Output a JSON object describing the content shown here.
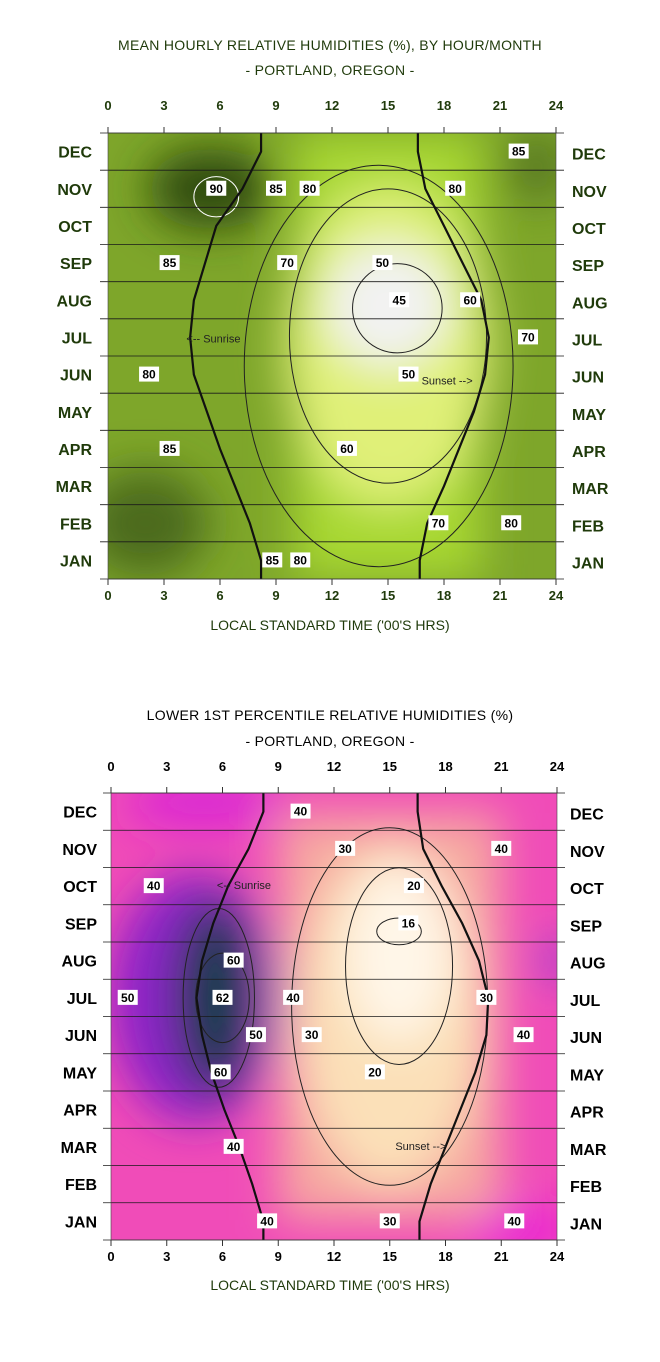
{
  "chart_data": [
    {
      "type": "heatmap",
      "title": "MEAN HOURLY RELATIVE HUMIDITIES (%), BY HOUR/MONTH",
      "subtitle": "- PORTLAND, OREGON -",
      "xlabel": "LOCAL STANDARD TIME ('00'S HRS)",
      "x_ticks": [
        "0",
        "3",
        "6",
        "9",
        "12",
        "15",
        "18",
        "21",
        "24"
      ],
      "xlim": [
        0,
        24
      ],
      "months": [
        "DEC",
        "NOV",
        "OCT",
        "SEP",
        "AUG",
        "JUL",
        "JUN",
        "MAY",
        "APR",
        "MAR",
        "FEB",
        "JAN"
      ],
      "annotations": [
        "<-- Sunrise",
        "Sunset -->"
      ],
      "contour_labels": [
        {
          "text": "90",
          "hour": 5.8,
          "month": "NOV"
        },
        {
          "text": "85",
          "hour": 9.0,
          "month": "NOV"
        },
        {
          "text": "80",
          "hour": 10.8,
          "month": "NOV"
        },
        {
          "text": "85",
          "hour": 22.0,
          "month": "DEC"
        },
        {
          "text": "80",
          "hour": 18.6,
          "month": "NOV"
        },
        {
          "text": "85",
          "hour": 3.3,
          "month": "SEP"
        },
        {
          "text": "70",
          "hour": 9.6,
          "month": "SEP"
        },
        {
          "text": "50",
          "hour": 14.7,
          "month": "SEP"
        },
        {
          "text": "45",
          "hour": 15.6,
          "month": "AUG"
        },
        {
          "text": "60",
          "hour": 19.4,
          "month": "AUG"
        },
        {
          "text": "70",
          "hour": 22.5,
          "month": "JUL"
        },
        {
          "text": "80",
          "hour": 2.2,
          "month": "JUN"
        },
        {
          "text": "50",
          "hour": 16.1,
          "month": "JUN"
        },
        {
          "text": "85",
          "hour": 3.3,
          "month": "APR"
        },
        {
          "text": "60",
          "hour": 12.8,
          "month": "APR"
        },
        {
          "text": "70",
          "hour": 17.7,
          "month": "FEB"
        },
        {
          "text": "80",
          "hour": 21.6,
          "month": "FEB"
        },
        {
          "text": "80",
          "hour": 10.3,
          "month": "JAN"
        },
        {
          "text": "85",
          "hour": 8.8,
          "month": "JAN"
        }
      ],
      "colors": {
        "high": "#2e4a10",
        "mid": "#a8d832",
        "low": "#f2f2f2"
      }
    },
    {
      "type": "heatmap",
      "title": "LOWER 1ST PERCENTILE RELATIVE HUMIDITIES (%)",
      "subtitle": "- PORTLAND, OREGON -",
      "xlabel": "LOCAL STANDARD TIME ('00'S HRS)",
      "x_ticks": [
        "0",
        "3",
        "6",
        "9",
        "12",
        "15",
        "18",
        "21",
        "24"
      ],
      "xlim": [
        0,
        24
      ],
      "months": [
        "DEC",
        "NOV",
        "OCT",
        "SEP",
        "AUG",
        "JUL",
        "JUN",
        "MAY",
        "APR",
        "MAR",
        "FEB",
        "JAN"
      ],
      "annotations": [
        "<-- Sunrise",
        "Sunset -->"
      ],
      "contour_labels": [
        {
          "text": "40",
          "hour": 10.2,
          "month": "DEC"
        },
        {
          "text": "30",
          "hour": 12.6,
          "month": "NOV"
        },
        {
          "text": "40",
          "hour": 21.0,
          "month": "NOV"
        },
        {
          "text": "40",
          "hour": 2.3,
          "month": "OCT"
        },
        {
          "text": "20",
          "hour": 16.3,
          "month": "OCT"
        },
        {
          "text": "16",
          "hour": 16.0,
          "month": "SEP"
        },
        {
          "text": "60",
          "hour": 6.6,
          "month": "AUG"
        },
        {
          "text": "62",
          "hour": 6.0,
          "month": "JUL"
        },
        {
          "text": "40",
          "hour": 9.8,
          "month": "JUL"
        },
        {
          "text": "50",
          "hour": 0.9,
          "month": "JUL"
        },
        {
          "text": "30",
          "hour": 20.2,
          "month": "JUL"
        },
        {
          "text": "50",
          "hour": 7.8,
          "month": "JUN"
        },
        {
          "text": "40",
          "hour": 22.2,
          "month": "JUN"
        },
        {
          "text": "30",
          "hour": 10.8,
          "month": "JUN"
        },
        {
          "text": "20",
          "hour": 14.2,
          "month": "MAY"
        },
        {
          "text": "60",
          "hour": 5.9,
          "month": "MAY"
        },
        {
          "text": "40",
          "hour": 6.6,
          "month": "MAR"
        },
        {
          "text": "40",
          "hour": 8.4,
          "month": "JAN"
        },
        {
          "text": "30",
          "hour": 15.0,
          "month": "JAN"
        },
        {
          "text": "40",
          "hour": 21.7,
          "month": "JAN"
        }
      ],
      "colors": {
        "high": "#0d3b4a",
        "mid": "#8a22c8",
        "low": "#fff6e8",
        "accent": "#e81ad8"
      }
    }
  ]
}
